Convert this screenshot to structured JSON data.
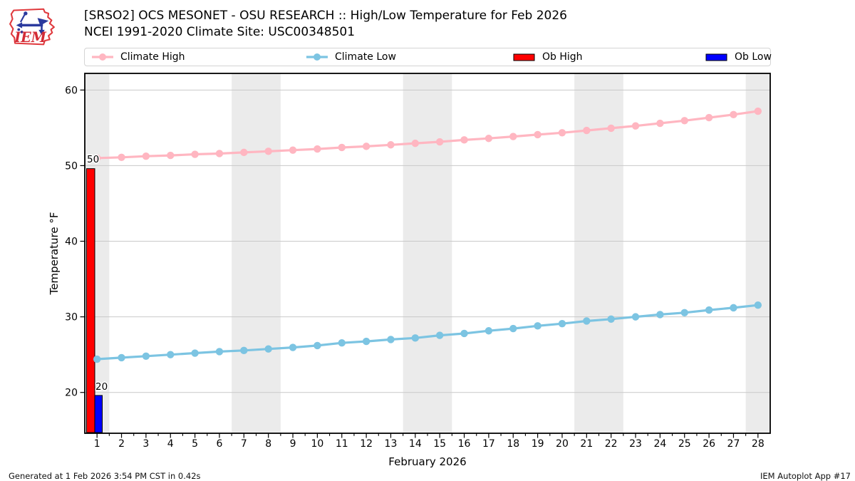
{
  "header": {
    "title_line1": "[SRSO2] OCS MESONET - OSU RESEARCH :: High/Low Temperature for Feb 2026",
    "title_line2": "NCEI 1991-2020 Climate Site: USC00348501",
    "logo_text": "IEM"
  },
  "legend": {
    "items": [
      {
        "label": "Climate High",
        "type": "line-marker",
        "color": "#ffb6c1"
      },
      {
        "label": "Climate Low",
        "type": "line-marker",
        "color": "#7cc4e2"
      },
      {
        "label": "Ob High",
        "type": "box",
        "color": "#ff0000"
      },
      {
        "label": "Ob Low",
        "type": "box",
        "color": "#0000ff"
      }
    ]
  },
  "footer": {
    "left": "Generated at 1 Feb 2026 3:54 PM CST in 0.42s",
    "right": "IEM Autoplot App #17"
  },
  "chart_data": {
    "type": "line",
    "x": [
      1,
      2,
      3,
      4,
      5,
      6,
      7,
      8,
      9,
      10,
      11,
      12,
      13,
      14,
      15,
      16,
      17,
      18,
      19,
      20,
      21,
      22,
      23,
      24,
      25,
      26,
      27,
      28
    ],
    "series": [
      {
        "name": "Climate High",
        "color": "#ffb6c1",
        "marker": "circle",
        "values": [
          51.0,
          51.1,
          51.25,
          51.35,
          51.5,
          51.6,
          51.75,
          51.9,
          52.05,
          52.2,
          52.4,
          52.55,
          52.75,
          52.95,
          53.15,
          53.4,
          53.6,
          53.85,
          54.1,
          54.35,
          54.65,
          54.95,
          55.25,
          55.6,
          55.95,
          56.35,
          56.75,
          57.2
        ]
      },
      {
        "name": "Climate Low",
        "color": "#7cc4e2",
        "marker": "circle",
        "values": [
          24.4,
          24.6,
          24.8,
          25.0,
          25.2,
          25.4,
          25.55,
          25.75,
          25.95,
          26.2,
          26.55,
          26.75,
          27.0,
          27.2,
          27.55,
          27.8,
          28.15,
          28.45,
          28.8,
          29.1,
          29.45,
          29.7,
          30.0,
          30.3,
          30.55,
          30.9,
          31.2,
          31.55
        ]
      }
    ],
    "bars": [
      {
        "name": "Ob High",
        "color": "#ff0000",
        "day": 1,
        "value": 50,
        "label": "50",
        "bar_top": 49.6
      },
      {
        "name": "Ob Low",
        "color": "#0000ff",
        "day": 1,
        "value": 20,
        "label": "20",
        "bar_top": 19.6
      }
    ],
    "xlabel": "February 2026",
    "ylabel": "Temperature °F",
    "xlim": [
      0.5,
      28.5
    ],
    "ylim": [
      14.6,
      62.2
    ],
    "yticks": [
      20,
      30,
      40,
      50,
      60
    ],
    "xticks": [
      1,
      2,
      3,
      4,
      5,
      6,
      7,
      8,
      9,
      10,
      11,
      12,
      13,
      14,
      15,
      16,
      17,
      18,
      19,
      20,
      21,
      22,
      23,
      24,
      25,
      26,
      27,
      28
    ],
    "weekend_bands": [
      [
        0.5,
        1.5
      ],
      [
        6.5,
        8.5
      ],
      [
        13.5,
        15.5
      ],
      [
        20.5,
        22.5
      ],
      [
        27.5,
        28.5
      ]
    ],
    "band_color": "#ebebeb",
    "grid_color": "#c9c9c9",
    "grid": "horizontal",
    "legend_position": "top"
  }
}
